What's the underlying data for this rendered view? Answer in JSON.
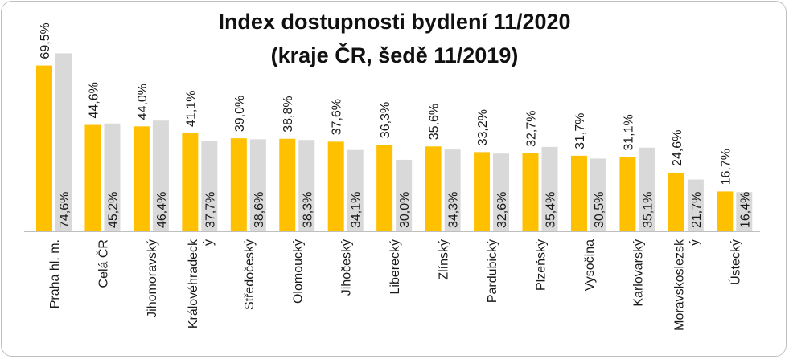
{
  "chart_data": {
    "type": "bar",
    "title_line1": "Index dostupnosti bydlení 11/2020",
    "title_line2": "(kraje ČR, šedě 11/2019)",
    "categories": [
      "Praha hl. m.",
      "Celá ČR",
      "Jihomoravský",
      "Královéhradecký",
      "Středočeský",
      "Olomoucký",
      "Jihočeský",
      "Liberecký",
      "Zlínský",
      "Pardubický",
      "Plzeňský",
      "Vysočina",
      "Karlovarský",
      "Moravskoslezský",
      "Ústecký"
    ],
    "category_lines": [
      [
        "Praha hl. m."
      ],
      [
        "Celá ČR"
      ],
      [
        "Jihomoravský"
      ],
      [
        "Královéhradeck",
        "ý"
      ],
      [
        "Středočeský"
      ],
      [
        "Olomoucký"
      ],
      [
        "Jihočeský"
      ],
      [
        "Liberecký"
      ],
      [
        "Zlínský"
      ],
      [
        "Pardubický"
      ],
      [
        "Plzeňský"
      ],
      [
        "Vysočina"
      ],
      [
        "Karlovarský"
      ],
      [
        "Moravskoslezsk",
        "ý"
      ],
      [
        "Ústecký"
      ]
    ],
    "series": [
      {
        "period": "11/2020",
        "color": "#FFC000",
        "values": [
          69.5,
          44.6,
          44.0,
          41.1,
          39.0,
          38.8,
          37.6,
          36.3,
          35.6,
          33.2,
          32.7,
          31.7,
          31.1,
          24.6,
          16.7
        ],
        "labels": [
          "69,5%",
          "44,6%",
          "44,0%",
          "41,1%",
          "39,0%",
          "38,8%",
          "37,6%",
          "36,3%",
          "35,6%",
          "33,2%",
          "32,7%",
          "31,7%",
          "31,1%",
          "24,6%",
          "16,7%"
        ]
      },
      {
        "period": "11/2019",
        "color": "#D9D9D9",
        "values": [
          74.6,
          45.2,
          46.4,
          37.7,
          38.6,
          38.3,
          34.1,
          30.0,
          34.3,
          32.6,
          35.4,
          30.5,
          35.1,
          21.7,
          16.4
        ],
        "labels": [
          "74,6%",
          "45,2%",
          "46,4%",
          "37,7%",
          "38,6%",
          "38,3%",
          "34,1%",
          "30,0%",
          "34,3%",
          "32,6%",
          "35,4%",
          "30,5%",
          "35,1%",
          "21,7%",
          "16,4%"
        ]
      }
    ],
    "ylim": [
      0,
      80
    ],
    "grid": false,
    "legend": "none"
  }
}
